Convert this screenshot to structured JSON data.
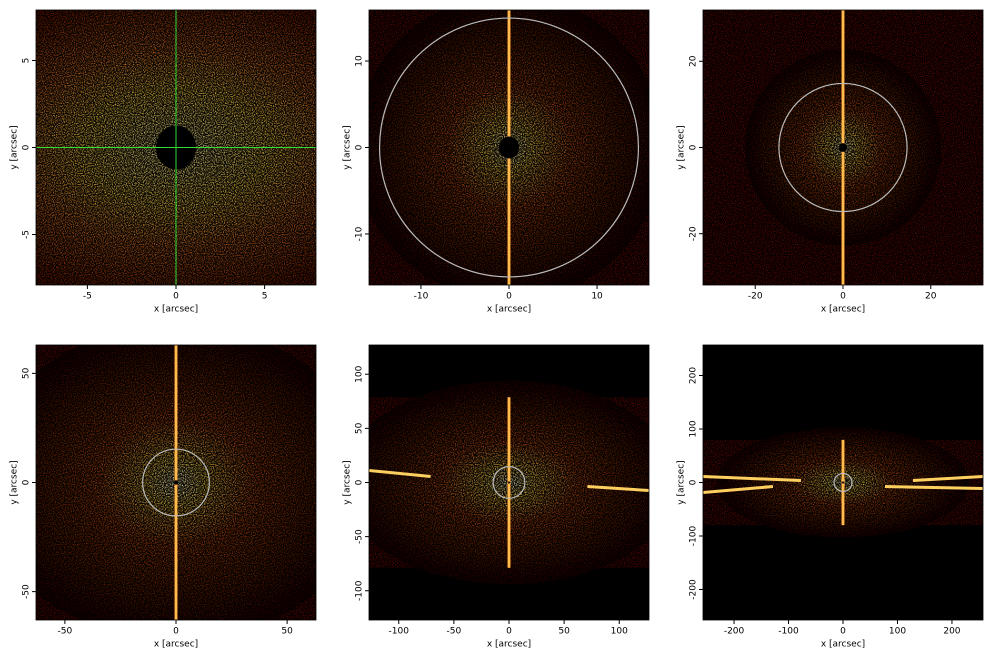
{
  "chart_data": [
    {
      "type": "image",
      "xlabel": "x [arcsec]",
      "ylabel": "y [arcsec]",
      "xlim": [
        -7.9,
        7.9
      ],
      "ylim": [
        -7.9,
        7.9
      ],
      "xticks": [
        -5,
        0,
        5
      ],
      "yticks": [
        -5,
        0,
        5
      ],
      "crosshair": true,
      "crosshair_color": "#33dd33"
    },
    {
      "type": "image",
      "xlabel": "x [arcsec]",
      "ylabel": "y [arcsec]",
      "xlim": [
        -15.9,
        15.9
      ],
      "ylim": [
        -15.9,
        15.9
      ],
      "xticks": [
        -10,
        0,
        10
      ],
      "yticks": [
        -10,
        0,
        10
      ],
      "circle_radius": 14.7,
      "circle_color": "#bbbbbb"
    },
    {
      "type": "image",
      "xlabel": "x [arcsec]",
      "ylabel": "y [arcsec]",
      "xlim": [
        -31.9,
        31.9
      ],
      "ylim": [
        -31.9,
        31.9
      ],
      "xticks": [
        -20,
        0,
        20
      ],
      "yticks": [
        -20,
        0,
        20
      ],
      "circle_radius": 14.6,
      "circle_color": "#bbbbbb"
    },
    {
      "type": "image",
      "xlabel": "x [arcsec]",
      "ylabel": "y [arcsec]",
      "xlim": [
        -63,
        63
      ],
      "ylim": [
        -63,
        63
      ],
      "xticks": [
        -50,
        0,
        50
      ],
      "yticks": [
        -50,
        0,
        50
      ],
      "circle_radius": 15,
      "circle_color": "#bbbbbb"
    },
    {
      "type": "image",
      "xlabel": "x [arcsec]",
      "ylabel": "y [arcsec]",
      "xlim": [
        -127,
        127
      ],
      "ylim": [
        -127,
        127
      ],
      "xticks": [
        -100,
        -50,
        0,
        50,
        100
      ],
      "yticks": [
        -100,
        -50,
        0,
        50,
        100
      ],
      "circle_radius": 14.4,
      "circle_color": "#bbbbbb"
    },
    {
      "type": "image",
      "xlabel": "x [arcsec]",
      "ylabel": "y [arcsec]",
      "xlim": [
        -257,
        257
      ],
      "ylim": [
        -257,
        257
      ],
      "xticks": [
        -200,
        -100,
        0,
        100,
        200
      ],
      "yticks": [
        -200,
        -100,
        0,
        100,
        200
      ],
      "circle_radius": 16.5,
      "circle_color": "#bbbbbb"
    }
  ]
}
